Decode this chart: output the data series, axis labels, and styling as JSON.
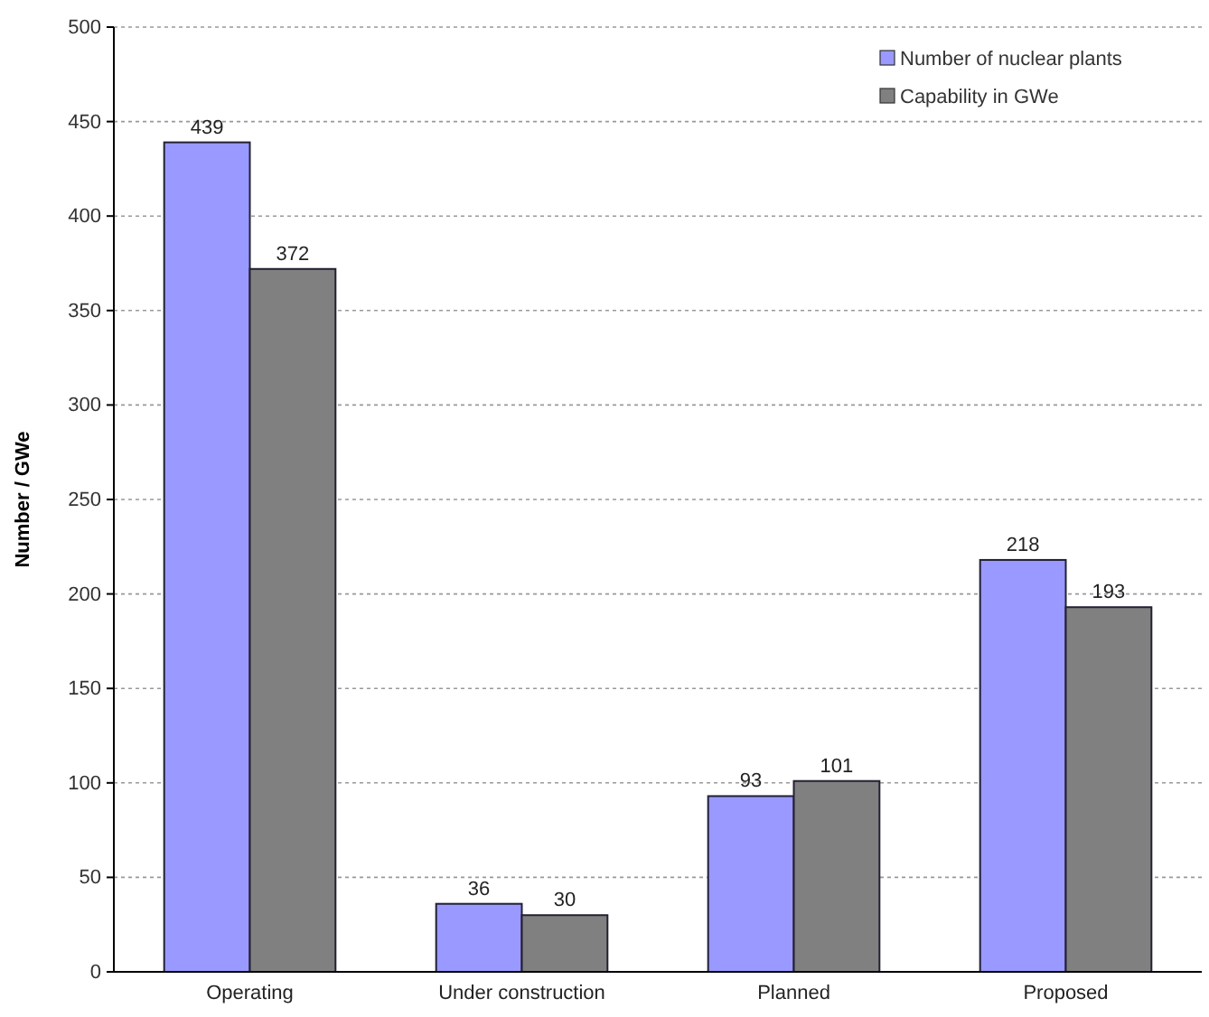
{
  "chart_data": {
    "type": "bar",
    "ylabel": "Number / GWe",
    "categories": [
      "Operating",
      "Under construction",
      "Planned",
      "Proposed"
    ],
    "series": [
      {
        "name": "Number of nuclear plants",
        "color": "#9999ff",
        "values": [
          439,
          36,
          93,
          218
        ]
      },
      {
        "name": "Capability in GWe",
        "color": "#808080",
        "values": [
          372,
          30,
          101,
          193
        ]
      }
    ],
    "ylim": [
      0,
      500
    ],
    "yticks": [
      0,
      50,
      100,
      150,
      200,
      250,
      300,
      350,
      400,
      450,
      500
    ],
    "grid": "y",
    "legend": "top right",
    "data_labels": true
  }
}
